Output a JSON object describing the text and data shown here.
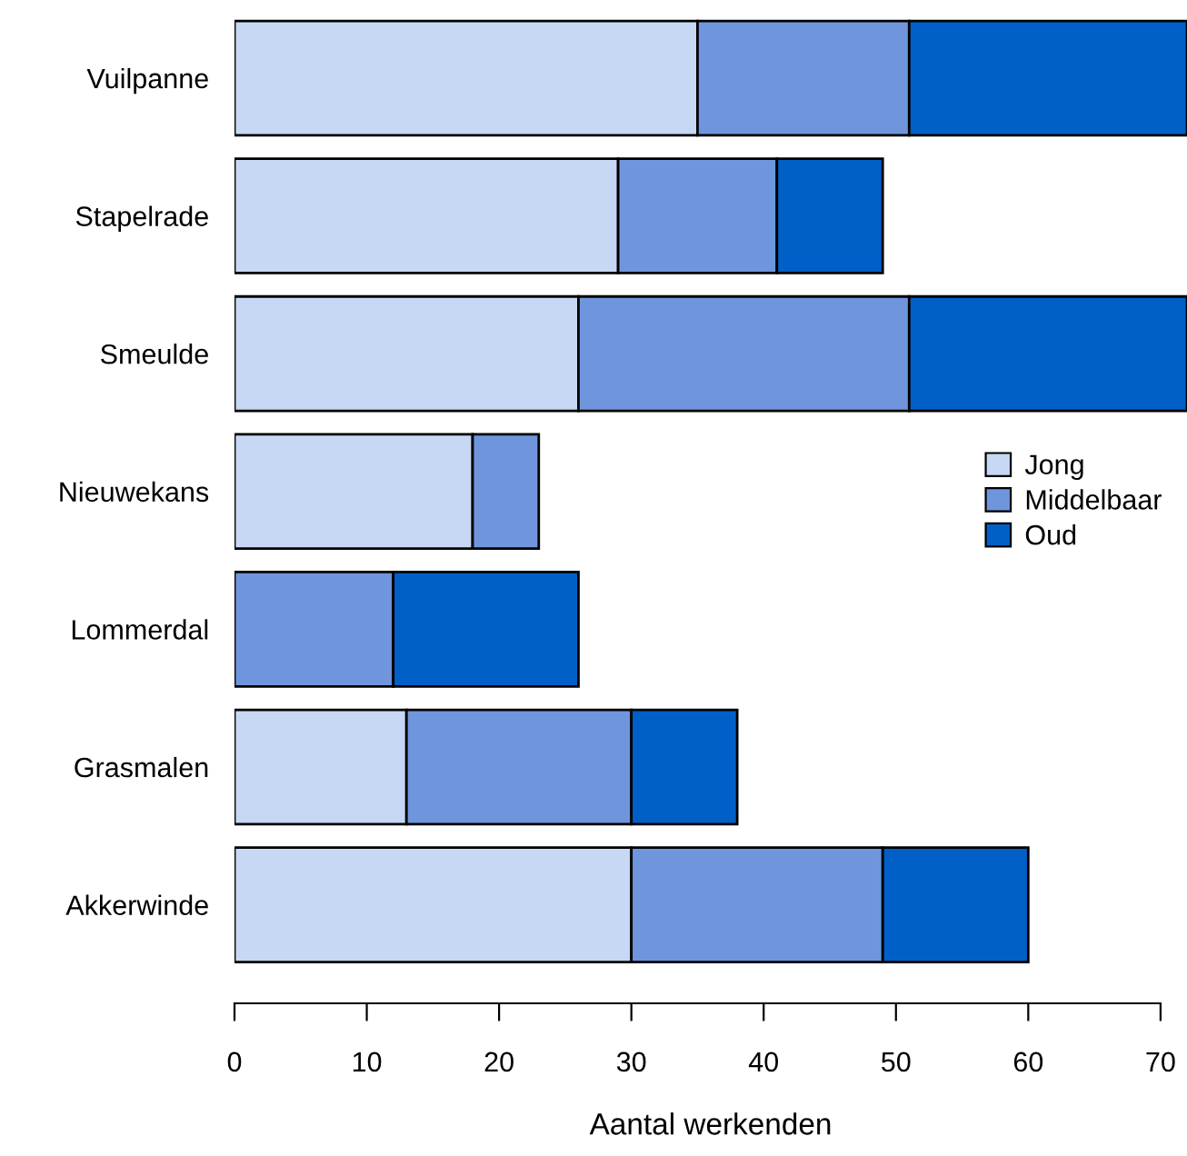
{
  "chart_data": {
    "type": "bar",
    "orientation": "horizontal",
    "stacked": true,
    "xlabel": "Aantal werkenden",
    "categories": [
      "Vuilpanne",
      "Stapelrade",
      "Smeulde",
      "Nieuwekans",
      "Lommerdal",
      "Grasmalen",
      "Akkerwinde"
    ],
    "series": [
      {
        "name": "Jong",
        "color": "#c6d8f4",
        "values": [
          35,
          29,
          26,
          18,
          null,
          13,
          30
        ]
      },
      {
        "name": "Middelbaar",
        "color": "#6f96dc",
        "values": [
          16,
          12,
          25,
          5,
          12,
          17,
          19
        ]
      },
      {
        "name": "Oud",
        "color": "#0060c8",
        "values": [
          21,
          8,
          21,
          null,
          14,
          8,
          11
        ]
      }
    ],
    "xlim": [
      0,
      72
    ],
    "xticks": [
      0,
      10,
      20,
      30,
      40,
      50,
      60,
      70
    ],
    "grid": false,
    "legend": "right"
  }
}
